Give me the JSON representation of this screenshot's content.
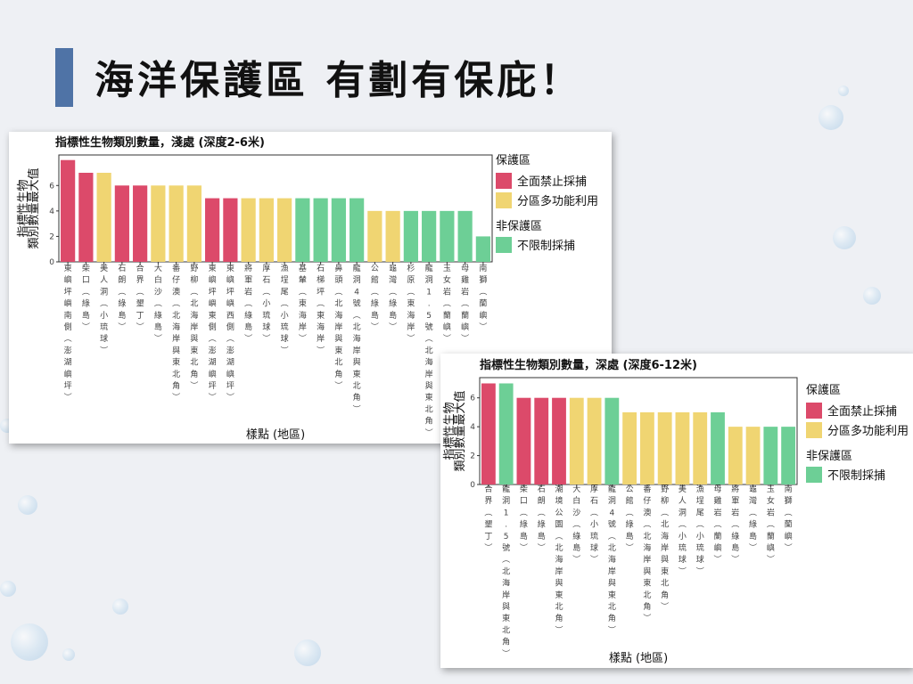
{
  "slide": {
    "title": "海洋保護區 有劃有保庇！"
  },
  "colors": {
    "no_take": "#dc4a6a",
    "multi_use": "#f0d572",
    "non_mpa": "#6dcf96",
    "title_bar": "#4f73a6"
  },
  "legend": {
    "mpa_title": "保護區",
    "no_take_label": "全面禁止採捕",
    "multi_use_label": "分區多功能利用",
    "non_mpa_title": "非保護區",
    "non_mpa_label": "不限制採捕"
  },
  "chart_data": [
    {
      "type": "bar",
      "title": "指標性生物類別數量，淺處 (深度2-6米)",
      "xlabel": "樣點 (地區)",
      "ylabel": "指標性生物類別數量最大值",
      "ylim": [
        0,
        8.4
      ],
      "yticks": [
        0,
        2,
        4,
        6
      ],
      "categories": [
        "東嶼坪嶼南側 (澎湖嶼坪)",
        "柴口 (綠島)",
        "美人洞 (小琉球)",
        "石朗 (綠島)",
        "合界 (墾丁)",
        "大白沙 (綠島)",
        "番仔澳 (北海岸與東北角)",
        "野柳 (北海岸與東北角)",
        "東嶼坪嶼東側 (澎湖嶼坪)",
        "東嶼坪嶼西側 (澎湖嶼坪)",
        "將軍岩 (綠島)",
        "厚石 (小琉球)",
        "漁埕尾 (小琉球)",
        "基輦 (東海岸)",
        "石梯坪 (東海岸)",
        "鼻頭 (北海岸與東北角)",
        "龍洞4號 (北海岸與東北角)",
        "公館 (綠島)",
        "龜灣 (綠島)",
        "杉原 (東海岸)",
        "龍洞1.5號 (北海岸與東北角)",
        "玉女岩 (蘭嶼)",
        "母雞岩 (蘭嶼)",
        "南獅 (蘭嶼)"
      ],
      "values": [
        8,
        7,
        7,
        6,
        6,
        6,
        6,
        6,
        5,
        5,
        5,
        5,
        5,
        5,
        5,
        5,
        5,
        4,
        4,
        4,
        4,
        4,
        4,
        2
      ],
      "groups": [
        "no_take",
        "no_take",
        "multi_use",
        "no_take",
        "no_take",
        "multi_use",
        "multi_use",
        "multi_use",
        "no_take",
        "no_take",
        "multi_use",
        "multi_use",
        "multi_use",
        "non_mpa",
        "non_mpa",
        "non_mpa",
        "non_mpa",
        "multi_use",
        "multi_use",
        "non_mpa",
        "non_mpa",
        "non_mpa",
        "non_mpa",
        "non_mpa"
      ],
      "legend_position": "right"
    },
    {
      "type": "bar",
      "title": "指標性生物類別數量，深處 (深度6-12米)",
      "xlabel": "樣點 (地區)",
      "ylabel": "指標性生物類別數量最大值",
      "ylim": [
        0,
        7.4
      ],
      "yticks": [
        0,
        2,
        4,
        6
      ],
      "categories": [
        "合界 (墾丁)",
        "龍洞1.5號 (北海岸與東北角)",
        "柴口 (綠島)",
        "石朗 (綠島)",
        "潮境公園 (北海岸與東北角)",
        "大白沙 (綠島)",
        "厚石 (小琉球)",
        "龍洞4號 (北海岸與東北角)",
        "公館 (綠島)",
        "番仔澳 (北海岸與東北角)",
        "野柳 (北海岸與東北角)",
        "美人洞 (小琉球)",
        "漁埕尾 (小琉球)",
        "母雞岩 (蘭嶼)",
        "將軍岩 (綠島)",
        "龜灣 (綠島)",
        "玉女岩 (蘭嶼)",
        "南獅 (蘭嶼)"
      ],
      "values": [
        7,
        7,
        6,
        6,
        6,
        6,
        6,
        6,
        5,
        5,
        5,
        5,
        5,
        5,
        4,
        4,
        4,
        4
      ],
      "groups": [
        "no_take",
        "non_mpa",
        "no_take",
        "no_take",
        "no_take",
        "multi_use",
        "multi_use",
        "non_mpa",
        "multi_use",
        "multi_use",
        "multi_use",
        "multi_use",
        "multi_use",
        "non_mpa",
        "multi_use",
        "multi_use",
        "non_mpa",
        "non_mpa"
      ],
      "legend_position": "right"
    }
  ]
}
